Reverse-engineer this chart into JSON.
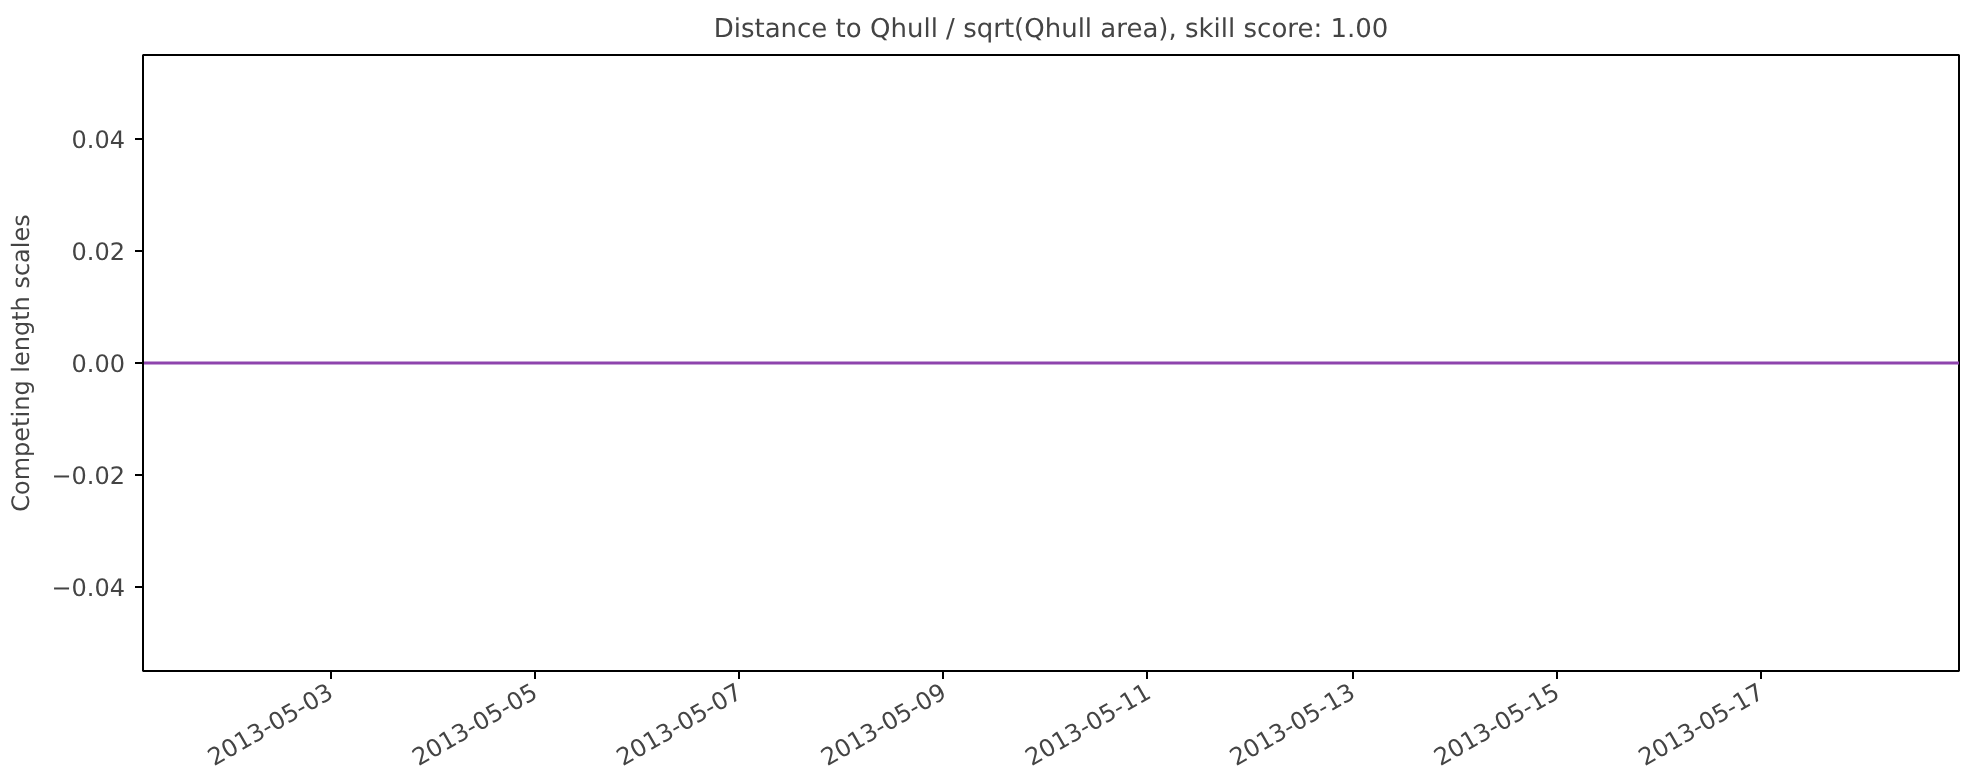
{
  "chart_data": {
    "type": "line",
    "title": "Distance to Qhull / sqrt(Qhull area), skill score: 1.00",
    "ylabel": "Competing length scales",
    "x": [
      "2013-05-01T04:00",
      "2013-05-18T22:30"
    ],
    "series": [
      {
        "color": "#8e44ad",
        "values": [
          0,
          0
        ]
      }
    ],
    "xlim": [
      "2013-05-01T04:00",
      "2013-05-18T22:30"
    ],
    "xticks": [
      "2013-05-03",
      "2013-05-05",
      "2013-05-07",
      "2013-05-09",
      "2013-05-11",
      "2013-05-13",
      "2013-05-15",
      "2013-05-17"
    ],
    "ylim": [
      -0.055,
      0.055
    ],
    "yticks": [
      {
        "value": -0.04,
        "label": "−0.04"
      },
      {
        "value": -0.02,
        "label": "−0.02"
      },
      {
        "value": 0,
        "label": "0.00"
      },
      {
        "value": 0.02,
        "label": "0.02"
      },
      {
        "value": 0.04,
        "label": "0.04"
      }
    ],
    "line_style": "solid"
  }
}
